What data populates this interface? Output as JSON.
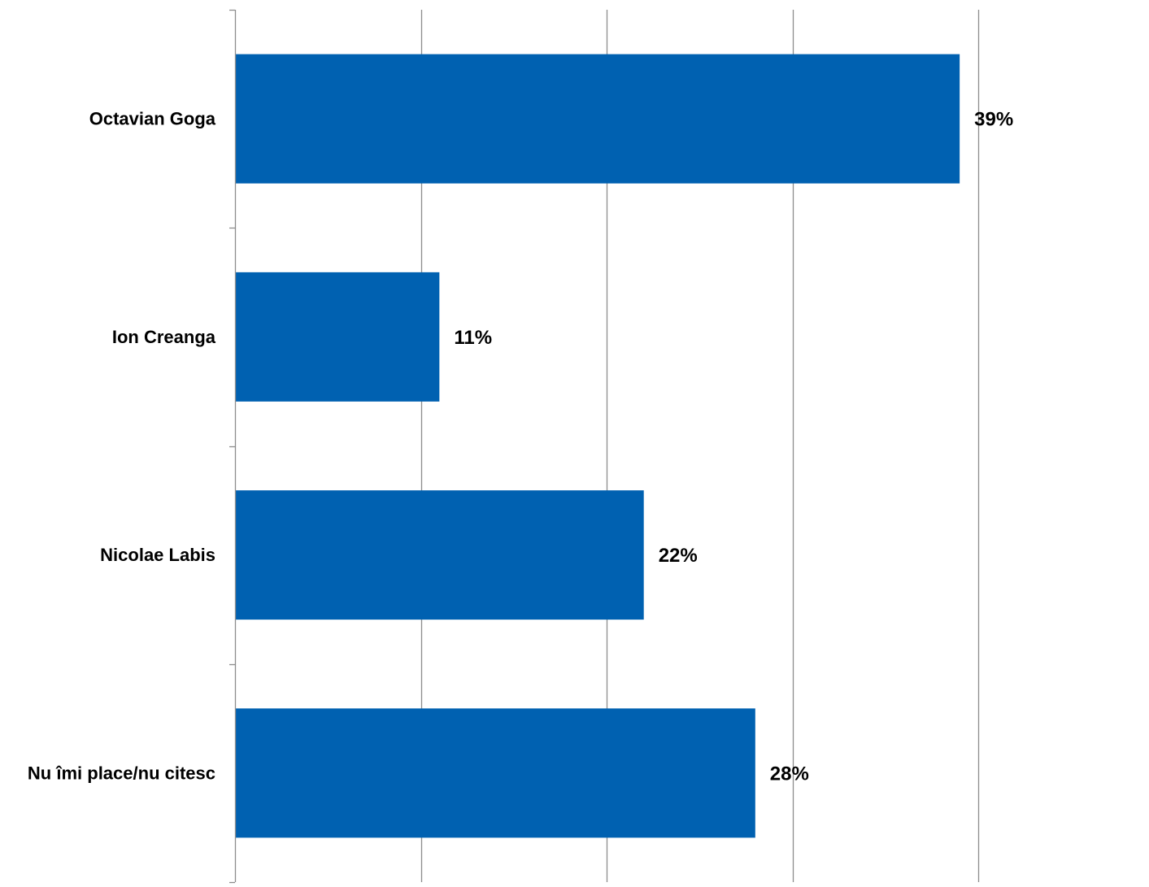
{
  "chart_data": {
    "type": "bar",
    "orientation": "horizontal",
    "categories": [
      "Octavian Goga",
      "Ion Creanga",
      "Nicolae Labis",
      "Nu îmi place/nu citesc"
    ],
    "values": [
      39,
      11,
      22,
      28
    ],
    "value_labels": [
      "39%",
      "11%",
      "22%",
      "28%"
    ],
    "unit": "%",
    "xlim": [
      0,
      40
    ],
    "x_grid_step": 10,
    "grid": true,
    "legend": "none",
    "title": "",
    "xlabel": "",
    "ylabel": "",
    "colors": {
      "bar": "#0061B1",
      "grid": "#8C8C8C",
      "text": "#000000"
    }
  }
}
